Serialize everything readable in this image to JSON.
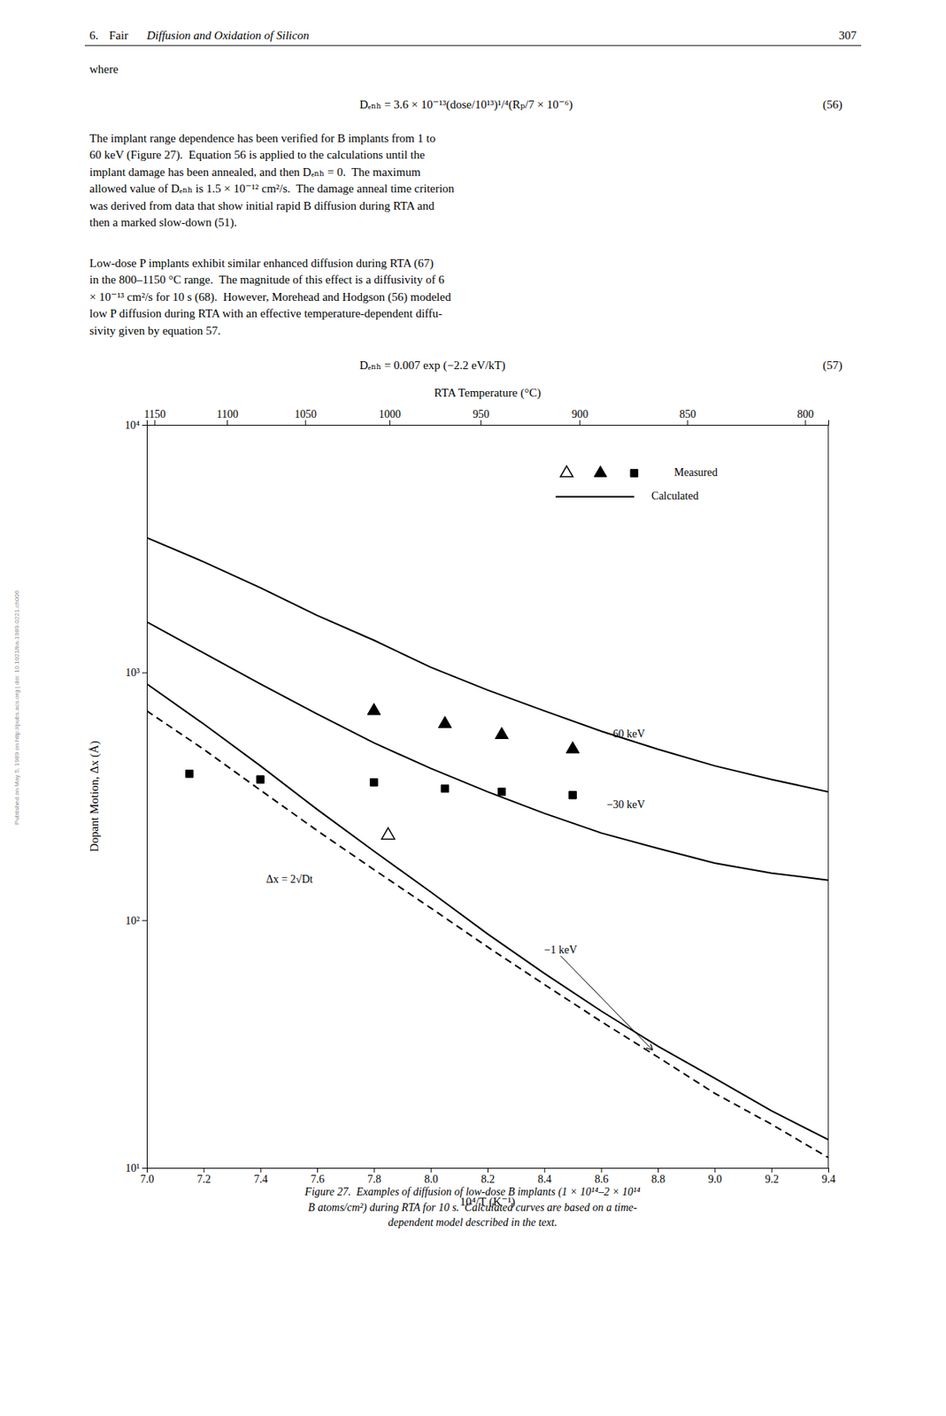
{
  "page": {
    "header": {
      "number": "6.",
      "author": "Fair",
      "title": "Diffusion and Oxidation of Silicon",
      "page": "307"
    },
    "intro": "where",
    "equations": [
      {
        "text": "Dₑₙₕ = 3.6 × 10⁻¹³(dose/10¹³)¹/⁴(Rₚ/7 × 10⁻⁶)",
        "number": "(56)"
      },
      {
        "text": "Dₑₙₕ = 0.007 exp (−2.2 eV/kT)",
        "number": "(57)"
      }
    ],
    "paragraphs": [
      [
        "The implant range dependence has been verified for B implants from 1 to",
        "60 keV (Figure 27).  Equation 56 is applied to the calculations until the",
        "implant damage has been annealed, and then Dₑₙₕ = 0.  The maximum",
        "allowed value of Dₑₙₕ is 1.5 × 10⁻¹² cm²/s.  The damage anneal time criterion",
        "was derived from data that show initial rapid B diffusion during RTA and",
        "then a marked slow-down (51)."
      ],
      [
        "Low-dose P implants exhibit similar enhanced diffusion during RTA (67)",
        "in the 800–1150 °C range.  The magnitude of this effect is a diffusivity of 6",
        "× 10⁻¹³ cm²/s for 10 s (68).  However, Morehead and Hodgson (56) modeled",
        "low P diffusion during RTA with an effective temperature-dependent diffu-",
        "sivity given by equation 57."
      ]
    ],
    "caption": [
      "Figure 27.  Examples of diffusion of low-dose B implants (1 × 10¹⁴–2 × 10¹⁴",
      "B atoms/cm²) during RTA for 10 s.  Calculated curves are based on a time-",
      "dependent model described in the text."
    ],
    "watermark": "Published on May 5, 1989 on http://pubs.acs.org | doi: 10.1021/ba-1989-0221.ch006"
  },
  "chart_data": {
    "type": "line",
    "xlabel": "10⁴/T (K⁻¹)",
    "ylabel": "Dopant Motion, Δx (Å)",
    "x2label": "RTA Temperature (°C)",
    "log": "y",
    "grid": false,
    "color": "black",
    "xlim": [
      7.0,
      9.4
    ],
    "xticks": [
      {
        "value": 7.0,
        "label": "7.0"
      },
      7.2,
      7.4,
      7.6,
      7.8,
      {
        "value": 8.0,
        "label": "8.0"
      },
      8.2,
      8.4,
      8.6,
      8.8,
      {
        "value": 9.0,
        "label": "9.0"
      },
      9.2,
      9.4
    ],
    "x2lim": [
      7.0,
      9.4
    ],
    "x2ticks": [
      {
        "value": 7.026666,
        "label": "1150"
      },
      {
        "value": 7.282526,
        "label": "1100"
      },
      {
        "value": 7.557722,
        "label": "1050"
      },
      {
        "value": 7.854534,
        "label": "1000"
      },
      {
        "value": 8.175612,
        "label": "950"
      },
      {
        "value": 8.524059,
        "label": "900"
      },
      {
        "value": 8.90353,
        "label": "850"
      },
      {
        "value": 9.318362,
        "label": "800"
      }
    ],
    "ylim": [
      10,
      10000
    ],
    "yticks": [
      {
        "value": 10,
        "label": "10¹"
      },
      {
        "value": 100,
        "label": "10²"
      },
      {
        "value": 1000,
        "label": "10³"
      },
      {
        "value": 10000,
        "label": "10⁴"
      }
    ],
    "series": [
      {
        "type": "line",
        "line_style": "solid",
        "x": [
          7.0,
          7.2,
          7.4,
          7.6,
          7.8,
          8.0,
          8.2,
          8.4,
          8.6,
          8.8,
          9.0,
          9.2,
          9.4
        ],
        "values": [
          3500,
          2800,
          2200,
          1700,
          1350,
          1050,
          850,
          700,
          580,
          490,
          420,
          370,
          330
        ]
      },
      {
        "type": "line",
        "line_style": "solid",
        "x": [
          7.0,
          7.2,
          7.4,
          7.6,
          7.8,
          8.0,
          8.2,
          8.4,
          8.6,
          8.8,
          9.0,
          9.2,
          9.4
        ],
        "values": [
          1600,
          1200,
          900,
          680,
          520,
          410,
          330,
          270,
          225,
          195,
          170,
          155,
          145
        ]
      },
      {
        "type": "line",
        "line_style": "solid",
        "x": [
          7.0,
          7.2,
          7.4,
          7.6,
          7.8,
          8.0,
          8.2,
          8.4,
          8.6,
          8.8,
          9.0,
          9.2,
          9.4
        ],
        "values": [
          900,
          620,
          420,
          280,
          190,
          130,
          88,
          61,
          43,
          31,
          23,
          17,
          13
        ]
      },
      {
        "type": "line",
        "line_style": "dashed",
        "x": [
          7.0,
          7.2,
          7.4,
          7.6,
          7.8,
          8.0,
          8.2,
          8.4,
          8.6,
          8.8,
          9.0,
          9.2,
          9.4
        ],
        "values": [
          700,
          490,
          335,
          230,
          160,
          112,
          78,
          55,
          39,
          28,
          20,
          15,
          11
        ]
      },
      {
        "type": "scatter",
        "marker": "triangle",
        "x": [
          7.8,
          8.05,
          8.25,
          8.5
        ],
        "values": [
          700,
          620,
          560,
          490
        ]
      },
      {
        "type": "scatter",
        "marker": "square",
        "x": [
          7.15,
          7.4,
          7.8,
          8.05,
          8.25,
          8.5
        ],
        "values": [
          390,
          370,
          360,
          340,
          330,
          320
        ]
      },
      {
        "type": "scatter",
        "marker": "triangle-open",
        "x": [
          7.85
        ],
        "values": [
          220
        ]
      }
    ],
    "annotations": [
      {
        "text": "−60 keV",
        "x": 8.62,
        "y": 560
      },
      {
        "text": "−30 keV",
        "x": 8.62,
        "y": 290
      },
      {
        "text": "−1 keV",
        "x": 8.4,
        "y": 75,
        "arrow_x": 8.78,
        "arrow_y": 30
      },
      {
        "text": "Δx = 2√Dt",
        "x": 7.42,
        "y": 145
      }
    ],
    "legend": "upper right",
    "legend_items": [
      {
        "label": "Measured",
        "series": [
          6,
          4,
          5
        ]
      },
      {
        "label": "Calculated",
        "series": [
          0
        ]
      }
    ]
  }
}
